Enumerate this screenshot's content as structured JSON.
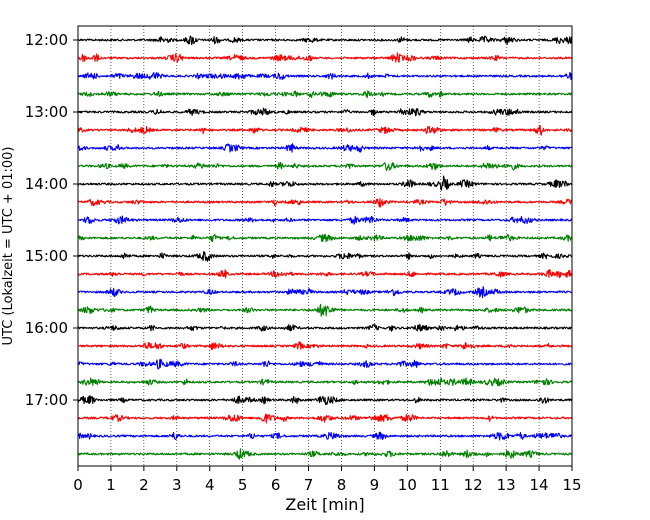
{
  "chart_data": {
    "type": "line",
    "title": "",
    "xlabel": "Zeit  [min]",
    "ylabel": "UTC (Lokalzeit = UTC + 01:00)",
    "xlim": [
      0,
      15
    ],
    "x_ticks": [
      "0",
      "1",
      "2",
      "3",
      "4",
      "5",
      "6",
      "7",
      "8",
      "9",
      "10",
      "11",
      "12",
      "13",
      "14",
      "15"
    ],
    "y_ticks": [
      "12:00",
      "13:00",
      "14:00",
      "15:00",
      "16:00",
      "17:00"
    ],
    "grid": "vertical dotted",
    "row_minutes": 15,
    "rows": [
      {
        "start": "12:00",
        "color": "#000000"
      },
      {
        "start": "12:15",
        "color": "#ff0000"
      },
      {
        "start": "12:30",
        "color": "#0000ff"
      },
      {
        "start": "12:45",
        "color": "#008000"
      },
      {
        "start": "13:00",
        "color": "#000000"
      },
      {
        "start": "13:15",
        "color": "#ff0000"
      },
      {
        "start": "13:30",
        "color": "#0000ff"
      },
      {
        "start": "13:45",
        "color": "#008000"
      },
      {
        "start": "14:00",
        "color": "#000000"
      },
      {
        "start": "14:15",
        "color": "#ff0000"
      },
      {
        "start": "14:30",
        "color": "#0000ff"
      },
      {
        "start": "14:45",
        "color": "#008000"
      },
      {
        "start": "15:00",
        "color": "#000000"
      },
      {
        "start": "15:15",
        "color": "#ff0000"
      },
      {
        "start": "15:30",
        "color": "#0000ff"
      },
      {
        "start": "15:45",
        "color": "#008000"
      },
      {
        "start": "16:00",
        "color": "#000000"
      },
      {
        "start": "16:15",
        "color": "#ff0000"
      },
      {
        "start": "16:30",
        "color": "#0000ff"
      },
      {
        "start": "16:45",
        "color": "#008000"
      },
      {
        "start": "17:00",
        "color": "#000000"
      },
      {
        "start": "17:15",
        "color": "#ff0000"
      },
      {
        "start": "17:30",
        "color": "#0000ff"
      },
      {
        "start": "17:45",
        "color": "#008000"
      }
    ]
  }
}
